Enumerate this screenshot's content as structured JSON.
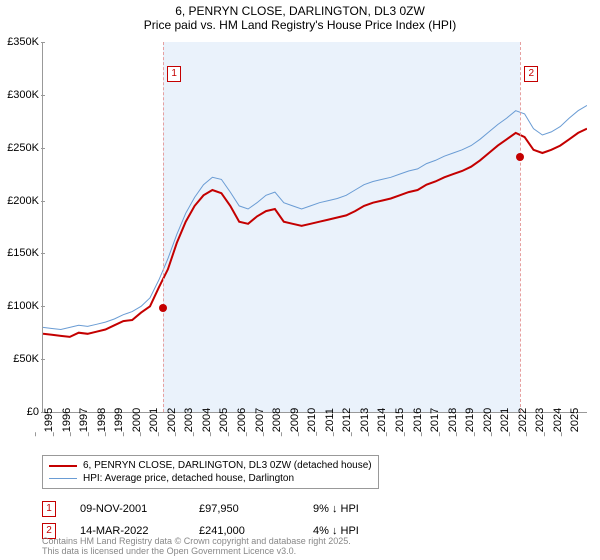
{
  "title": "6, PENRYN CLOSE, DARLINGTON, DL3 0ZW",
  "subtitle": "Price paid vs. HM Land Registry's House Price Index (HPI)",
  "chart": {
    "type": "line",
    "background_color": "#ffffff",
    "axis_color": "#999999",
    "shade_color": "#eaf2fb",
    "shade_start_year": 2001.85,
    "shade_end_year": 2022.2,
    "xlim": [
      1995,
      2026
    ],
    "ylim": [
      0,
      350000
    ],
    "ytick_step": 50000,
    "yticks": [
      "£0",
      "£50K",
      "£100K",
      "£150K",
      "£200K",
      "£250K",
      "£300K",
      "£350K"
    ],
    "xticks": [
      1995,
      1996,
      1997,
      1998,
      1999,
      2000,
      2001,
      2002,
      2003,
      2004,
      2005,
      2006,
      2007,
      2008,
      2009,
      2010,
      2011,
      2012,
      2013,
      2014,
      2015,
      2016,
      2017,
      2018,
      2019,
      2020,
      2021,
      2022,
      2023,
      2024,
      2025
    ],
    "series": {
      "property": {
        "y": [
          74000,
          73000,
          72000,
          71000,
          75000,
          74000,
          76000,
          78000,
          82000,
          86000,
          87000,
          94000,
          100000,
          118000,
          135000,
          160000,
          180000,
          195000,
          205000,
          210000,
          207000,
          195000,
          180000,
          178000,
          185000,
          190000,
          192000,
          180000,
          178000,
          176000,
          178000,
          180000,
          182000,
          184000,
          186000,
          190000,
          195000,
          198000,
          200000,
          202000,
          205000,
          208000,
          210000,
          215000,
          218000,
          222000,
          225000,
          228000,
          232000,
          238000,
          245000,
          252000,
          258000,
          264000,
          260000,
          248000,
          245000,
          248000,
          252000,
          258000,
          264000,
          268000
        ],
        "color": "#c40000",
        "line_width": 2
      },
      "hpi": {
        "y": [
          80000,
          79000,
          78000,
          80000,
          82000,
          81000,
          83000,
          85000,
          88000,
          92000,
          95000,
          100000,
          108000,
          125000,
          145000,
          168000,
          188000,
          203000,
          215000,
          222000,
          220000,
          208000,
          195000,
          192000,
          198000,
          205000,
          208000,
          198000,
          195000,
          192000,
          195000,
          198000,
          200000,
          202000,
          205000,
          210000,
          215000,
          218000,
          220000,
          222000,
          225000,
          228000,
          230000,
          235000,
          238000,
          242000,
          245000,
          248000,
          252000,
          258000,
          265000,
          272000,
          278000,
          285000,
          282000,
          268000,
          262000,
          265000,
          270000,
          278000,
          285000,
          290000
        ],
        "color": "#6a9cd4",
        "line_width": 1
      }
    },
    "markers": [
      {
        "id": "1",
        "year": 2001.85,
        "price": 97950,
        "box_top": 24,
        "color": "#c40000",
        "dot_color": "#c40000",
        "line_color": "#e6a0a0"
      },
      {
        "id": "2",
        "year": 2022.2,
        "price": 241000,
        "box_top": 24,
        "color": "#c40000",
        "dot_color": "#c40000",
        "line_color": "#e6a0a0"
      }
    ]
  },
  "legend": {
    "items": [
      {
        "label": "6, PENRYN CLOSE, DARLINGTON, DL3 0ZW (detached house)",
        "color": "#c40000",
        "width": 2
      },
      {
        "label": "HPI: Average price, detached house, Darlington",
        "color": "#6a9cd4",
        "width": 1
      }
    ]
  },
  "sales": [
    {
      "id": "1",
      "date": "09-NOV-2001",
      "price": "£97,950",
      "diff": "9% ↓ HPI",
      "color": "#c40000"
    },
    {
      "id": "2",
      "date": "14-MAR-2022",
      "price": "£241,000",
      "diff": "4% ↓ HPI",
      "color": "#c40000"
    }
  ],
  "attrib": {
    "line1": "Contains HM Land Registry data © Crown copyright and database right 2025.",
    "line2": "This data is licensed under the Open Government Licence v3.0."
  }
}
